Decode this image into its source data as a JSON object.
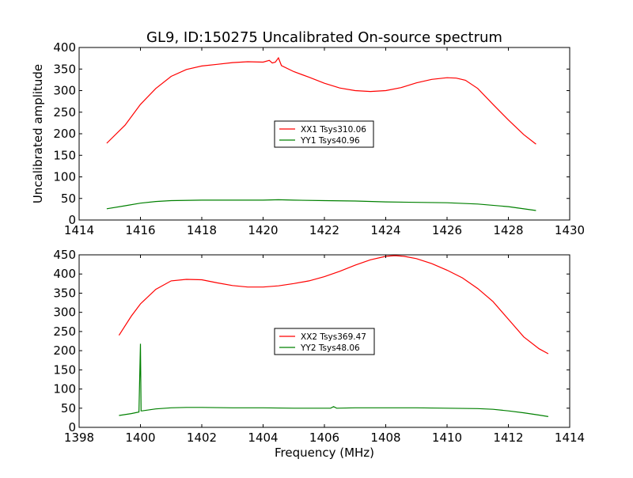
{
  "chart_data": [
    {
      "type": "line",
      "title": "GL9, ID:150275 Uncalibrated On-source spectrum",
      "xlabel": "",
      "ylabel": "Uncalibrated amplitude",
      "xlim": [
        1414,
        1430
      ],
      "ylim": [
        0,
        400
      ],
      "xticks": [
        "1414",
        "1416",
        "1418",
        "1420",
        "1422",
        "1424",
        "1426",
        "1428",
        "1430"
      ],
      "yticks": [
        "0",
        "50",
        "100",
        "150",
        "200",
        "250",
        "300",
        "350",
        "400"
      ],
      "legend_position": "center",
      "series": [
        {
          "name": "XX1 Tsys310.06",
          "color": "#ff0000",
          "x": [
            1414.9,
            1415.5,
            1416,
            1416.5,
            1417,
            1417.5,
            1418,
            1418.5,
            1419,
            1419.5,
            1420,
            1420.2,
            1420.3,
            1420.4,
            1420.5,
            1420.6,
            1421,
            1421.5,
            1422,
            1422.5,
            1423,
            1423.5,
            1424,
            1424.5,
            1425,
            1425.5,
            1426,
            1426.3,
            1426.6,
            1427,
            1427.5,
            1428,
            1428.5,
            1428.9
          ],
          "y": [
            178,
            220,
            268,
            305,
            333,
            349,
            357,
            361,
            365,
            367,
            366,
            370,
            364,
            366,
            376,
            358,
            344,
            331,
            317,
            306,
            300,
            298,
            300,
            307,
            318,
            326,
            330,
            329,
            324,
            305,
            268,
            232,
            198,
            176
          ]
        },
        {
          "name": "YY1 Tsys40.96",
          "color": "#008000",
          "x": [
            1414.9,
            1415.5,
            1416,
            1416.5,
            1417,
            1418,
            1419,
            1420,
            1420.5,
            1421,
            1422,
            1423,
            1424,
            1425,
            1426,
            1427,
            1428,
            1428.9
          ],
          "y": [
            26,
            33,
            39,
            43,
            45,
            46,
            46,
            46,
            47,
            46,
            45,
            44,
            42,
            41,
            40,
            37,
            31,
            22
          ]
        }
      ]
    },
    {
      "type": "line",
      "title": "",
      "xlabel": "Frequency (MHz)",
      "ylabel": "",
      "xlim": [
        1398,
        1414
      ],
      "ylim": [
        0,
        450
      ],
      "xticks": [
        "1398",
        "1400",
        "1402",
        "1404",
        "1406",
        "1408",
        "1410",
        "1412",
        "1414"
      ],
      "yticks": [
        "0",
        "50",
        "100",
        "150",
        "200",
        "250",
        "300",
        "350",
        "400",
        "450"
      ],
      "legend_position": "center",
      "series": [
        {
          "name": "XX2 Tsys369.47",
          "color": "#ff0000",
          "x": [
            1399.3,
            1399.7,
            1400,
            1400.5,
            1401,
            1401.5,
            1402,
            1402.5,
            1403,
            1403.5,
            1404,
            1404.5,
            1405,
            1405.5,
            1406,
            1406.5,
            1407,
            1407.5,
            1408,
            1408.3,
            1408.6,
            1409,
            1409.5,
            1410,
            1410.5,
            1411,
            1411.5,
            1412,
            1412.5,
            1413,
            1413.3
          ],
          "y": [
            240,
            290,
            322,
            360,
            382,
            386,
            385,
            377,
            370,
            366,
            366,
            369,
            375,
            382,
            393,
            407,
            423,
            437,
            446,
            448,
            446,
            440,
            427,
            410,
            390,
            362,
            328,
            282,
            236,
            205,
            192
          ]
        },
        {
          "name": "YY2 Tsys48.06",
          "color": "#008000",
          "x": [
            1399.3,
            1399.7,
            1399.95,
            1400,
            1400.02,
            1400.05,
            1400.5,
            1401,
            1401.5,
            1402,
            1403,
            1404,
            1405,
            1406,
            1406.2,
            1406.3,
            1406.4,
            1407,
            1408,
            1409,
            1410,
            1411,
            1411.5,
            1412,
            1412.5,
            1413,
            1413.3
          ],
          "y": [
            31,
            36,
            40,
            218,
            43,
            43,
            48,
            51,
            52,
            52,
            51,
            51,
            50,
            50,
            50,
            54,
            50,
            51,
            51,
            51,
            50,
            49,
            47,
            43,
            38,
            32,
            28
          ]
        }
      ]
    }
  ]
}
